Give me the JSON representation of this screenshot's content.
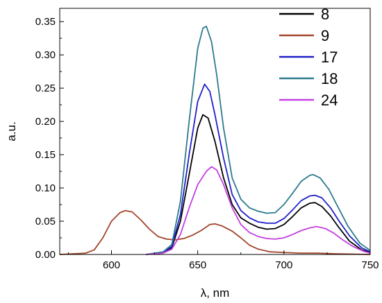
{
  "chart_data": {
    "type": "line",
    "title": "",
    "xlabel": "λ, nm",
    "ylabel": "a.u.",
    "xlim": [
      570,
      750
    ],
    "ylim": [
      0,
      0.37
    ],
    "x_ticks": [
      600,
      650,
      700,
      750
    ],
    "x_tick_labels": [
      "600",
      "650",
      "700",
      "750"
    ],
    "y_ticks": [
      0,
      0.05,
      0.1,
      0.15,
      0.2,
      0.25,
      0.3,
      0.35
    ],
    "y_tick_labels": [
      "0.00",
      "0.05",
      "0.10",
      "0.15",
      "0.20",
      "0.25",
      "0.30",
      "0.35"
    ],
    "grid": false,
    "legend_position": "top-right",
    "series": [
      {
        "name": "8",
        "color": "#000000",
        "points": [
          [
            620,
            0.0
          ],
          [
            630,
            0.003
          ],
          [
            635,
            0.01
          ],
          [
            640,
            0.05
          ],
          [
            645,
            0.12
          ],
          [
            650,
            0.19
          ],
          [
            653,
            0.21
          ],
          [
            656,
            0.205
          ],
          [
            660,
            0.17
          ],
          [
            665,
            0.115
          ],
          [
            670,
            0.075
          ],
          [
            675,
            0.055
          ],
          [
            680,
            0.047
          ],
          [
            685,
            0.041
          ],
          [
            690,
            0.038
          ],
          [
            695,
            0.039
          ],
          [
            700,
            0.045
          ],
          [
            705,
            0.057
          ],
          [
            710,
            0.07
          ],
          [
            715,
            0.077
          ],
          [
            718,
            0.078
          ],
          [
            722,
            0.072
          ],
          [
            727,
            0.058
          ],
          [
            732,
            0.04
          ],
          [
            738,
            0.02
          ],
          [
            745,
            0.007
          ],
          [
            750,
            0.003
          ]
        ]
      },
      {
        "name": "9",
        "color": "#a0442a",
        "points": [
          [
            570,
            0.0
          ],
          [
            585,
            0.002
          ],
          [
            590,
            0.007
          ],
          [
            595,
            0.025
          ],
          [
            600,
            0.05
          ],
          [
            605,
            0.063
          ],
          [
            608,
            0.066
          ],
          [
            612,
            0.064
          ],
          [
            617,
            0.052
          ],
          [
            622,
            0.038
          ],
          [
            627,
            0.027
          ],
          [
            632,
            0.023
          ],
          [
            637,
            0.022
          ],
          [
            642,
            0.024
          ],
          [
            647,
            0.029
          ],
          [
            652,
            0.036
          ],
          [
            657,
            0.045
          ],
          [
            660,
            0.046
          ],
          [
            664,
            0.043
          ],
          [
            670,
            0.035
          ],
          [
            675,
            0.025
          ],
          [
            680,
            0.014
          ],
          [
            685,
            0.008
          ],
          [
            692,
            0.004
          ],
          [
            700,
            0.003
          ],
          [
            710,
            0.002
          ],
          [
            720,
            0.002
          ],
          [
            730,
            0.001
          ],
          [
            750,
            0.0
          ]
        ]
      },
      {
        "name": "17",
        "color": "#1f1fc8",
        "points": [
          [
            620,
            0.0
          ],
          [
            630,
            0.003
          ],
          [
            635,
            0.012
          ],
          [
            640,
            0.06
          ],
          [
            645,
            0.15
          ],
          [
            650,
            0.23
          ],
          [
            654,
            0.256
          ],
          [
            657,
            0.245
          ],
          [
            660,
            0.21
          ],
          [
            665,
            0.145
          ],
          [
            670,
            0.09
          ],
          [
            675,
            0.066
          ],
          [
            680,
            0.055
          ],
          [
            685,
            0.049
          ],
          [
            690,
            0.047
          ],
          [
            695,
            0.047
          ],
          [
            700,
            0.054
          ],
          [
            705,
            0.067
          ],
          [
            710,
            0.081
          ],
          [
            715,
            0.088
          ],
          [
            718,
            0.089
          ],
          [
            722,
            0.085
          ],
          [
            727,
            0.07
          ],
          [
            732,
            0.05
          ],
          [
            738,
            0.028
          ],
          [
            745,
            0.01
          ],
          [
            750,
            0.004
          ]
        ]
      },
      {
        "name": "18",
        "color": "#2a7a8c",
        "points": [
          [
            620,
            0.0
          ],
          [
            630,
            0.004
          ],
          [
            635,
            0.015
          ],
          [
            640,
            0.08
          ],
          [
            645,
            0.2
          ],
          [
            650,
            0.31
          ],
          [
            653,
            0.34
          ],
          [
            655,
            0.343
          ],
          [
            658,
            0.32
          ],
          [
            661,
            0.27
          ],
          [
            665,
            0.19
          ],
          [
            670,
            0.115
          ],
          [
            675,
            0.083
          ],
          [
            680,
            0.07
          ],
          [
            685,
            0.065
          ],
          [
            690,
            0.062
          ],
          [
            695,
            0.063
          ],
          [
            700,
            0.075
          ],
          [
            705,
            0.092
          ],
          [
            710,
            0.11
          ],
          [
            715,
            0.119
          ],
          [
            717,
            0.12
          ],
          [
            721,
            0.115
          ],
          [
            726,
            0.098
          ],
          [
            731,
            0.073
          ],
          [
            737,
            0.043
          ],
          [
            744,
            0.017
          ],
          [
            750,
            0.006
          ]
        ]
      },
      {
        "name": "24",
        "color": "#c43fe0",
        "points": [
          [
            620,
            0.0
          ],
          [
            630,
            0.002
          ],
          [
            635,
            0.008
          ],
          [
            640,
            0.03
          ],
          [
            645,
            0.07
          ],
          [
            650,
            0.105
          ],
          [
            655,
            0.125
          ],
          [
            658,
            0.132
          ],
          [
            661,
            0.127
          ],
          [
            665,
            0.105
          ],
          [
            670,
            0.07
          ],
          [
            675,
            0.045
          ],
          [
            680,
            0.033
          ],
          [
            685,
            0.027
          ],
          [
            690,
            0.024
          ],
          [
            695,
            0.023
          ],
          [
            700,
            0.025
          ],
          [
            705,
            0.03
          ],
          [
            710,
            0.036
          ],
          [
            715,
            0.04
          ],
          [
            719,
            0.042
          ],
          [
            724,
            0.039
          ],
          [
            729,
            0.032
          ],
          [
            734,
            0.022
          ],
          [
            740,
            0.012
          ],
          [
            746,
            0.005
          ],
          [
            750,
            0.002
          ]
        ]
      }
    ]
  }
}
